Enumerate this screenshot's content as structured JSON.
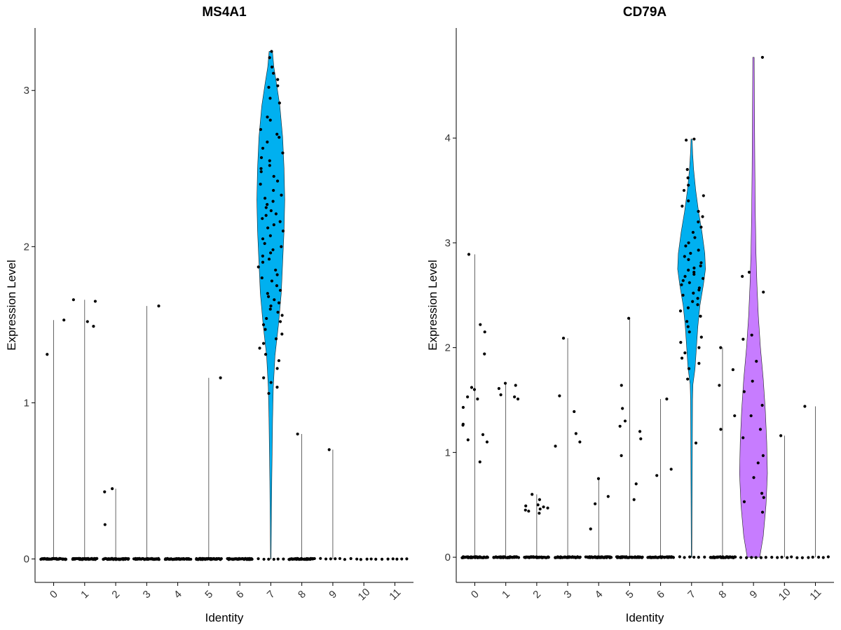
{
  "chart_data": [
    {
      "type": "violin",
      "title": "MS4A1",
      "xlabel": "Identity",
      "ylabel": "Expression Level",
      "categories": [
        "0",
        "1",
        "2",
        "3",
        "4",
        "5",
        "6",
        "7",
        "8",
        "9",
        "10",
        "11"
      ],
      "yticks": [
        0,
        1,
        2,
        3
      ],
      "ylim": [
        -0.15,
        3.4
      ],
      "max_values": [
        1.53,
        1.66,
        0.45,
        1.62,
        0,
        1.16,
        0,
        3.25,
        0.8,
        0.7,
        0,
        0
      ],
      "fill_colors": {
        "7": "#00B0F0"
      },
      "points": {
        "0": [
          1.31,
          1.53
        ],
        "1": [
          1.52,
          1.65,
          1.66,
          1.49
        ],
        "2": [
          0.45,
          0.43,
          0.22
        ],
        "3": [
          1.62
        ],
        "5": [
          1.16
        ],
        "7": [
          3.25,
          3.21,
          3.15,
          3.11,
          3.07,
          3.03,
          3.02,
          2.95,
          2.92,
          2.83,
          2.81,
          2.75,
          2.72,
          2.7,
          2.67,
          2.63,
          2.6,
          2.57,
          2.55,
          2.52,
          2.5,
          2.48,
          2.45,
          2.42,
          2.4,
          2.36,
          2.33,
          2.31,
          2.29,
          2.27,
          2.25,
          2.23,
          2.21,
          2.2,
          2.18,
          2.16,
          2.14,
          2.12,
          2.1,
          2.07,
          2.05,
          2.02,
          2.0,
          1.98,
          1.96,
          1.94,
          1.92,
          1.9,
          1.87,
          1.85,
          1.82,
          1.8,
          1.78,
          1.75,
          1.72,
          1.7,
          1.68,
          1.66,
          1.64,
          1.62,
          1.6,
          1.58,
          1.56,
          1.54,
          1.52,
          1.5,
          1.47,
          1.44,
          1.41,
          1.38,
          1.35,
          1.31,
          1.27,
          1.22,
          1.16,
          1.13,
          1.1,
          1.06
        ],
        "8": [
          0.8
        ],
        "9": [
          0.7
        ]
      },
      "violin_shapes": {
        "7": {
          "ymin": 0.0,
          "ymax": 3.25,
          "profile": [
            [
              0.0,
              0.02
            ],
            [
              0.1,
              0.03
            ],
            [
              0.3,
              0.05
            ],
            [
              0.5,
              0.07
            ],
            [
              0.7,
              0.1
            ],
            [
              0.9,
              0.13
            ],
            [
              1.1,
              0.18
            ],
            [
              1.3,
              0.3
            ],
            [
              1.5,
              0.55
            ],
            [
              1.7,
              0.75
            ],
            [
              1.9,
              0.85
            ],
            [
              2.1,
              0.95
            ],
            [
              2.3,
              1.0
            ],
            [
              2.5,
              0.95
            ],
            [
              2.7,
              0.85
            ],
            [
              2.9,
              0.65
            ],
            [
              3.05,
              0.4
            ],
            [
              3.15,
              0.22
            ],
            [
              3.25,
              0.12
            ]
          ]
        }
      }
    },
    {
      "type": "violin",
      "title": "CD79A",
      "xlabel": "Identity",
      "ylabel": "Expression Level",
      "categories": [
        "0",
        "1",
        "2",
        "3",
        "4",
        "5",
        "6",
        "7",
        "8",
        "9",
        "10",
        "11"
      ],
      "yticks": [
        0,
        1,
        2,
        3,
        4
      ],
      "ylim": [
        -0.24,
        5.05
      ],
      "max_values": [
        2.89,
        1.66,
        0.6,
        2.09,
        0.75,
        2.28,
        1.51,
        3.99,
        2.0,
        4.77,
        1.16,
        1.44
      ],
      "fill_colors": {
        "7": "#00B0F0",
        "9": "#C77CFF"
      },
      "points": {
        "0": [
          2.89,
          2.22,
          2.15,
          1.94,
          1.62,
          1.6,
          1.53,
          1.51,
          1.43,
          1.27,
          1.26,
          1.17,
          1.12,
          1.1,
          0.91
        ],
        "1": [
          1.66,
          1.64,
          1.61,
          1.55,
          1.53,
          1.51
        ],
        "2": [
          0.6,
          0.55,
          0.5,
          0.49,
          0.48,
          0.47,
          0.46,
          0.45,
          0.44,
          0.42
        ],
        "3": [
          2.09,
          1.54,
          1.39,
          1.18,
          1.1,
          1.06
        ],
        "4": [
          0.75,
          0.58,
          0.51,
          0.27
        ],
        "5": [
          2.28,
          1.64,
          1.42,
          1.3,
          1.25,
          1.2,
          1.13,
          0.97,
          0.7,
          0.55
        ],
        "6": [
          1.51,
          0.84,
          0.78
        ],
        "7": [
          3.99,
          3.98,
          3.7,
          3.62,
          3.55,
          3.5,
          3.45,
          3.4,
          3.35,
          3.3,
          3.25,
          3.2,
          3.15,
          3.1,
          3.05,
          3.0,
          2.97,
          2.93,
          2.9,
          2.87,
          2.84,
          2.81,
          2.78,
          2.76,
          2.74,
          2.72,
          2.7,
          2.68,
          2.66,
          2.64,
          2.62,
          2.6,
          2.57,
          2.55,
          2.52,
          2.5,
          2.47,
          2.44,
          2.41,
          2.38,
          2.35,
          2.3,
          2.25,
          2.2,
          2.15,
          2.1,
          2.05,
          2.0,
          1.95,
          1.9,
          1.85,
          1.8,
          1.7,
          1.09
        ],
        "8": [
          2.0,
          1.79,
          1.64,
          1.35,
          1.22
        ],
        "9": [
          4.77,
          2.72,
          2.68,
          2.53,
          2.12,
          2.08,
          1.87,
          1.68,
          1.58,
          1.45,
          1.35,
          1.22,
          1.14,
          0.97,
          0.9,
          0.76,
          0.61,
          0.57,
          0.53,
          0.43
        ],
        "10": [
          1.16
        ],
        "11": [
          1.44
        ]
      },
      "violin_shapes": {
        "7": {
          "ymin": 0.0,
          "ymax": 3.99,
          "profile": [
            [
              0.0,
              0.02
            ],
            [
              0.3,
              0.03
            ],
            [
              0.6,
              0.04
            ],
            [
              0.9,
              0.05
            ],
            [
              1.2,
              0.06
            ],
            [
              1.5,
              0.07
            ],
            [
              1.65,
              0.1
            ],
            [
              1.8,
              0.25
            ],
            [
              2.0,
              0.35
            ],
            [
              2.2,
              0.45
            ],
            [
              2.4,
              0.6
            ],
            [
              2.6,
              0.85
            ],
            [
              2.75,
              1.0
            ],
            [
              2.9,
              0.95
            ],
            [
              3.1,
              0.75
            ],
            [
              3.3,
              0.5
            ],
            [
              3.5,
              0.3
            ],
            [
              3.7,
              0.15
            ],
            [
              3.85,
              0.08
            ],
            [
              3.99,
              0.04
            ]
          ]
        },
        "9": {
          "ymin": 0.0,
          "ymax": 4.77,
          "profile": [
            [
              0.0,
              0.45
            ],
            [
              0.2,
              0.7
            ],
            [
              0.5,
              0.9
            ],
            [
              0.8,
              1.0
            ],
            [
              1.1,
              0.95
            ],
            [
              1.4,
              0.85
            ],
            [
              1.7,
              0.7
            ],
            [
              2.0,
              0.5
            ],
            [
              2.3,
              0.35
            ],
            [
              2.6,
              0.25
            ],
            [
              2.9,
              0.18
            ],
            [
              3.3,
              0.13
            ],
            [
              3.7,
              0.1
            ],
            [
              4.1,
              0.08
            ],
            [
              4.5,
              0.06
            ],
            [
              4.77,
              0.05
            ]
          ]
        }
      }
    }
  ]
}
